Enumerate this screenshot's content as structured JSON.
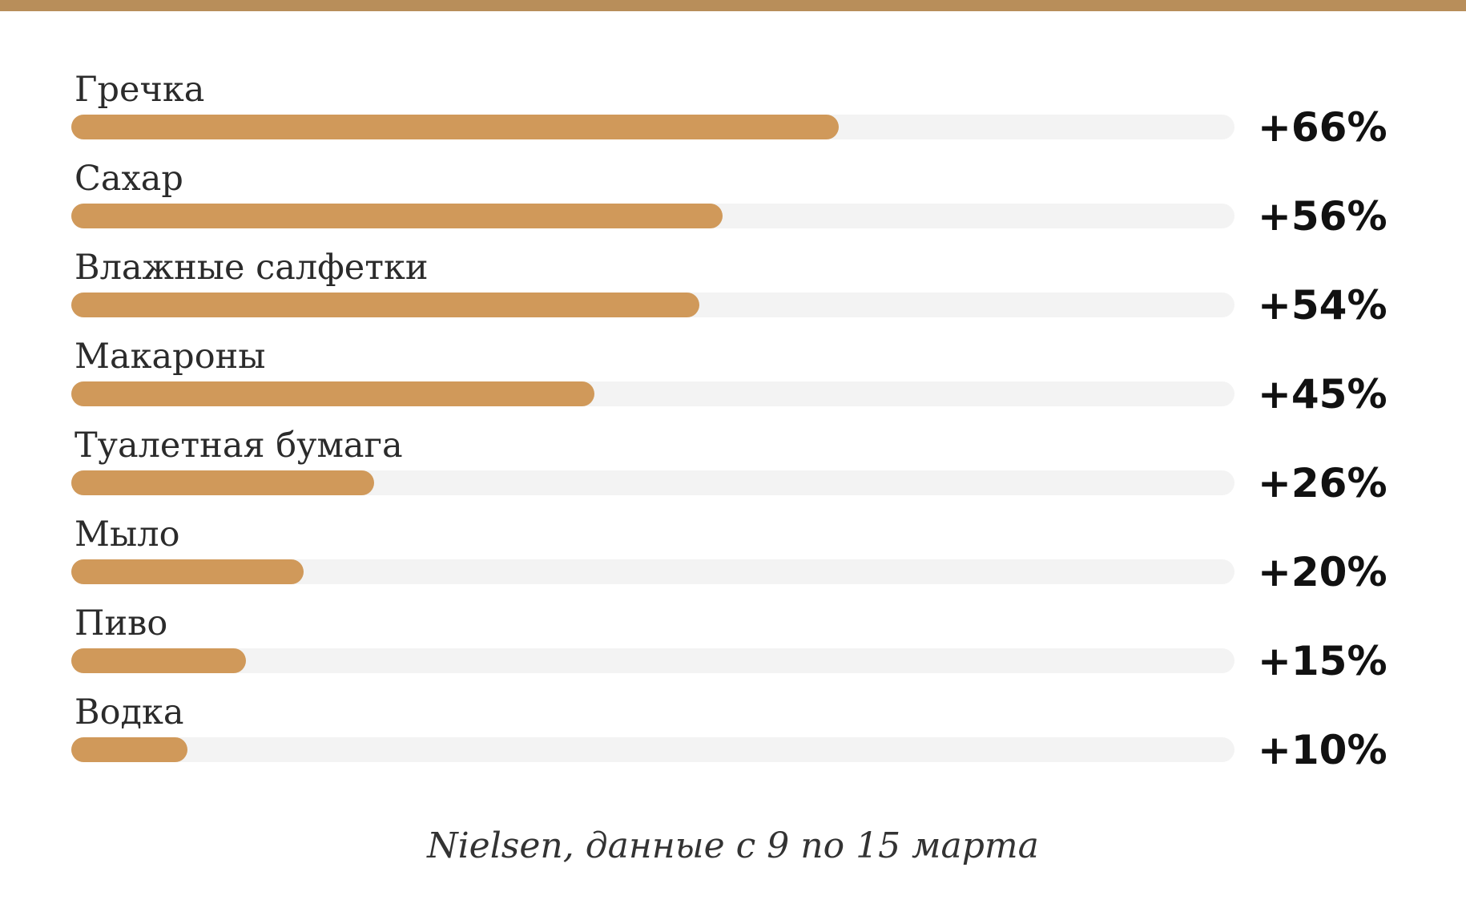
{
  "colors": {
    "accent_bar": "#b88e5a",
    "bar_fill": "#d0995a",
    "track": "#f3f3f3"
  },
  "source": "Nielsen, данные с 9 по 15 марта",
  "chart_data": {
    "type": "bar",
    "orientation": "horizontal",
    "categories": [
      "Гречка",
      "Сахар",
      "Влажные салфетки",
      "Макароны",
      "Туалетная бумага",
      "Мыло",
      "Пиво",
      "Водка"
    ],
    "values": [
      66,
      56,
      54,
      45,
      26,
      20,
      15,
      10
    ],
    "value_labels": [
      "+66%",
      "+56%",
      "+54%",
      "+45%",
      "+26%",
      "+20%",
      "+15%",
      "+10%"
    ],
    "xlim": [
      0,
      100
    ],
    "grid": false,
    "legend": "none"
  }
}
